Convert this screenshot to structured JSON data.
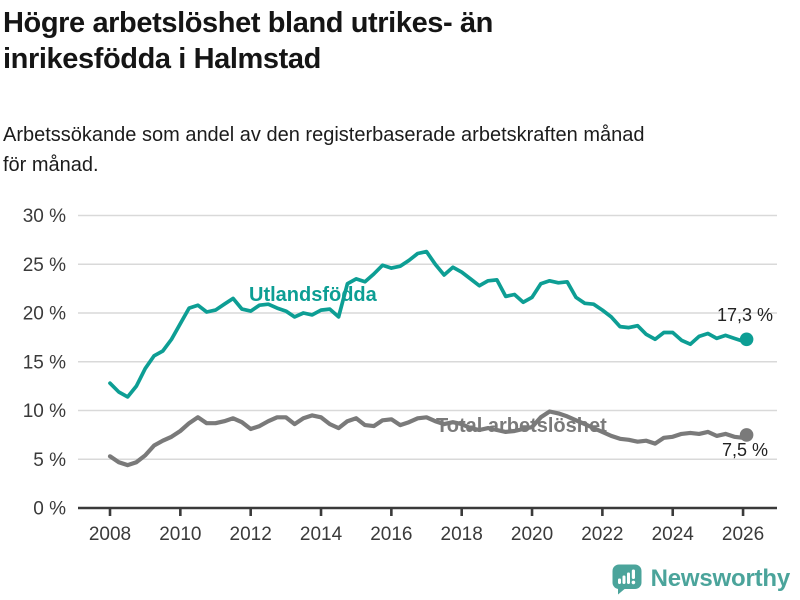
{
  "header": {
    "title_lines": [
      "Högre arbetslöshet bland utrikes- än",
      "inrikesfödda i Halmstad"
    ],
    "subtitle_lines": [
      "Arbetssökande som andel av den registerbaserade arbetskraften månad",
      "för månad."
    ]
  },
  "chart_data": {
    "type": "line",
    "title": "Högre arbetslöshet bland utrikes- än inrikesfödda i Halmstad",
    "subtitle": "Arbetssökande som andel av den registerbaserade arbetskraften månad för månad.",
    "xlabel": "",
    "ylabel": "",
    "ylim": [
      0,
      30
    ],
    "xlim": [
      2007.1,
      2027.0
    ],
    "grid": "horizontal",
    "legend": "inline-labels",
    "y_ticks": [
      {
        "value": 0,
        "label": "0 %"
      },
      {
        "value": 5,
        "label": "5 %"
      },
      {
        "value": 10,
        "label": "10 %"
      },
      {
        "value": 15,
        "label": "15 %"
      },
      {
        "value": 20,
        "label": "20 %"
      },
      {
        "value": 25,
        "label": "25 %"
      },
      {
        "value": 30,
        "label": "30 %"
      }
    ],
    "x_ticks": [
      {
        "value": 2008,
        "label": "2008"
      },
      {
        "value": 2010,
        "label": "2010"
      },
      {
        "value": 2012,
        "label": "2012"
      },
      {
        "value": 2014,
        "label": "2014"
      },
      {
        "value": 2016,
        "label": "2016"
      },
      {
        "value": 2018,
        "label": "2018"
      },
      {
        "value": 2020,
        "label": "2020"
      },
      {
        "value": 2022,
        "label": "2022"
      },
      {
        "value": 2024,
        "label": "2024"
      },
      {
        "value": 2026,
        "label": "2026"
      }
    ],
    "x_years": [
      2008,
      2008.25,
      2008.5,
      2008.75,
      2009,
      2009.25,
      2009.5,
      2009.75,
      2010,
      2010.25,
      2010.5,
      2010.75,
      2011,
      2011.25,
      2011.5,
      2011.75,
      2012,
      2012.25,
      2012.5,
      2012.75,
      2013,
      2013.25,
      2013.5,
      2013.75,
      2014,
      2014.25,
      2014.5,
      2014.75,
      2015,
      2015.25,
      2015.5,
      2015.75,
      2016,
      2016.25,
      2016.5,
      2016.75,
      2017,
      2017.25,
      2017.5,
      2017.75,
      2018,
      2018.25,
      2018.5,
      2018.75,
      2019,
      2019.25,
      2019.5,
      2019.75,
      2020,
      2020.25,
      2020.5,
      2020.75,
      2021,
      2021.25,
      2021.5,
      2021.75,
      2022,
      2022.25,
      2022.5,
      2022.75,
      2023,
      2023.25,
      2023.5,
      2023.75,
      2024,
      2024.25,
      2024.5,
      2024.75,
      2025,
      2025.25,
      2025.5,
      2025.75,
      2026,
      2026.1
    ],
    "series": [
      {
        "id": "utlandsfodda",
        "name": "Utlandsfödda",
        "color": "#0d9e94",
        "end_label": "17,3 %",
        "end_value": 17.3,
        "values": [
          12.8,
          11.9,
          11.4,
          12.5,
          14.3,
          15.6,
          16.1,
          17.3,
          18.9,
          20.5,
          20.8,
          20.1,
          20.3,
          20.9,
          21.5,
          20.4,
          20.2,
          20.8,
          20.9,
          20.5,
          20.2,
          19.6,
          20.0,
          19.8,
          20.3,
          20.4,
          19.6,
          23.0,
          23.5,
          23.2,
          24.0,
          24.9,
          24.6,
          24.8,
          25.4,
          26.1,
          26.3,
          25.0,
          23.9,
          24.7,
          24.2,
          23.5,
          22.8,
          23.3,
          23.4,
          21.7,
          21.9,
          21.1,
          21.6,
          23.0,
          23.3,
          23.1,
          23.2,
          21.6,
          21.0,
          20.9,
          20.3,
          19.6,
          18.6,
          18.5,
          18.7,
          17.8,
          17.3,
          18.0,
          18.0,
          17.2,
          16.8,
          17.6,
          17.9,
          17.4,
          17.7,
          17.4,
          17.1,
          17.3
        ]
      },
      {
        "id": "total-arbetsloshet",
        "name": "Total arbetslöshet",
        "color": "#7a7a7a",
        "end_label": "7,5 %",
        "end_value": 7.5,
        "values": [
          5.3,
          4.7,
          4.4,
          4.7,
          5.4,
          6.4,
          6.9,
          7.3,
          7.9,
          8.7,
          9.3,
          8.7,
          8.7,
          8.9,
          9.2,
          8.8,
          8.1,
          8.4,
          8.9,
          9.3,
          9.3,
          8.6,
          9.2,
          9.5,
          9.3,
          8.6,
          8.2,
          8.9,
          9.2,
          8.5,
          8.4,
          9.0,
          9.1,
          8.5,
          8.8,
          9.2,
          9.3,
          8.9,
          8.6,
          8.8,
          8.6,
          8.2,
          8.0,
          8.2,
          8.0,
          7.8,
          7.9,
          8.1,
          8.3,
          9.3,
          9.9,
          9.7,
          9.4,
          9.0,
          8.6,
          8.2,
          7.8,
          7.4,
          7.1,
          7.0,
          6.8,
          6.9,
          6.6,
          7.2,
          7.3,
          7.6,
          7.7,
          7.6,
          7.8,
          7.4,
          7.6,
          7.3,
          7.2,
          7.5
        ]
      }
    ],
    "axis_color": "#3a3a3a",
    "gridline_color": "#d9d9d9"
  },
  "footer": {
    "brand": "Newsworthy",
    "brand_color": "#4ba49b"
  }
}
